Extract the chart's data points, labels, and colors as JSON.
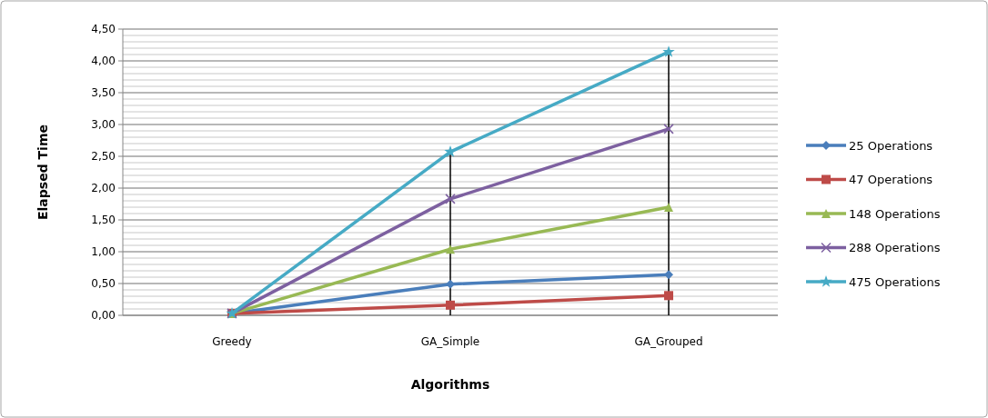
{
  "chart_data": {
    "type": "line",
    "xlabel": "Algorithms",
    "ylabel": "Elapsed Time",
    "categories": [
      "Greedy",
      "GA_Simple",
      "GA_Grouped"
    ],
    "series": [
      {
        "name": "25 Operations",
        "color": "#4a7ebb",
        "marker": "diamond",
        "values": [
          0.03,
          0.49,
          0.64
        ]
      },
      {
        "name": "47 Operations",
        "color": "#be4b48",
        "marker": "square",
        "values": [
          0.03,
          0.16,
          0.31
        ]
      },
      {
        "name": "148 Operations",
        "color": "#98b954",
        "marker": "triangle",
        "values": [
          0.03,
          1.04,
          1.7
        ]
      },
      {
        "name": "288 Operations",
        "color": "#7d60a0",
        "marker": "cross",
        "values": [
          0.03,
          1.83,
          2.93
        ]
      },
      {
        "name": "475 Operations",
        "color": "#46aac5",
        "marker": "star",
        "values": [
          0.03,
          2.57,
          4.14
        ]
      }
    ],
    "ylim": [
      0,
      4.5
    ],
    "yticks": [
      {
        "value": 0,
        "label": "0,00"
      },
      {
        "value": 0.5,
        "label": "0,50"
      },
      {
        "value": 1,
        "label": "1,00"
      },
      {
        "value": 1.5,
        "label": "1,50"
      },
      {
        "value": 2,
        "label": "2,00"
      },
      {
        "value": 2.5,
        "label": "2,50"
      },
      {
        "value": 3,
        "label": "3,00"
      },
      {
        "value": 3.5,
        "label": "3,50"
      },
      {
        "value": 4,
        "label": "4,00"
      },
      {
        "value": 4.5,
        "label": "4,50"
      }
    ],
    "ref_lines": [
      {
        "axis": "x",
        "value": "GA_Simple",
        "color": "#000000"
      },
      {
        "axis": "x",
        "value": "GA_Grouped",
        "color": "#000000"
      }
    ],
    "grid": "y",
    "legend": "right"
  }
}
